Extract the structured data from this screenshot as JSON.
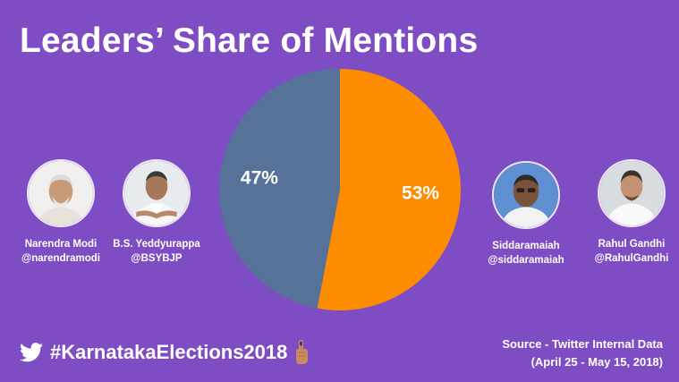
{
  "colors": {
    "background": "#7e4dc4",
    "slice_blue": "#577298",
    "slice_orange": "#fe8c00"
  },
  "title": "Leaders’ Share of Mentions",
  "chart_data": {
    "type": "pie",
    "slices": [
      {
        "label": "47%",
        "value": 47,
        "color": "#577298"
      },
      {
        "label": "53%",
        "value": 53,
        "color": "#fe8c00"
      }
    ]
  },
  "leaders": {
    "left": [
      {
        "name": "Narendra Modi",
        "handle": "@narendramodi"
      },
      {
        "name": "B.S. Yeddyurappa",
        "handle": "@BSYBJP"
      }
    ],
    "right": [
      {
        "name": "Siddaramaiah",
        "handle": "@siddaramaiah"
      },
      {
        "name": "Rahul Gandhi",
        "handle": "@RahulGandhi"
      }
    ]
  },
  "footer": {
    "hashtag": "#KarnatakaElections2018",
    "icons": [
      "twitter-bird-icon",
      "voting-finger-icon"
    ],
    "source_line1": "Source - Twitter Internal Data",
    "source_line2": "(April 25 - May 15, 2018)"
  }
}
